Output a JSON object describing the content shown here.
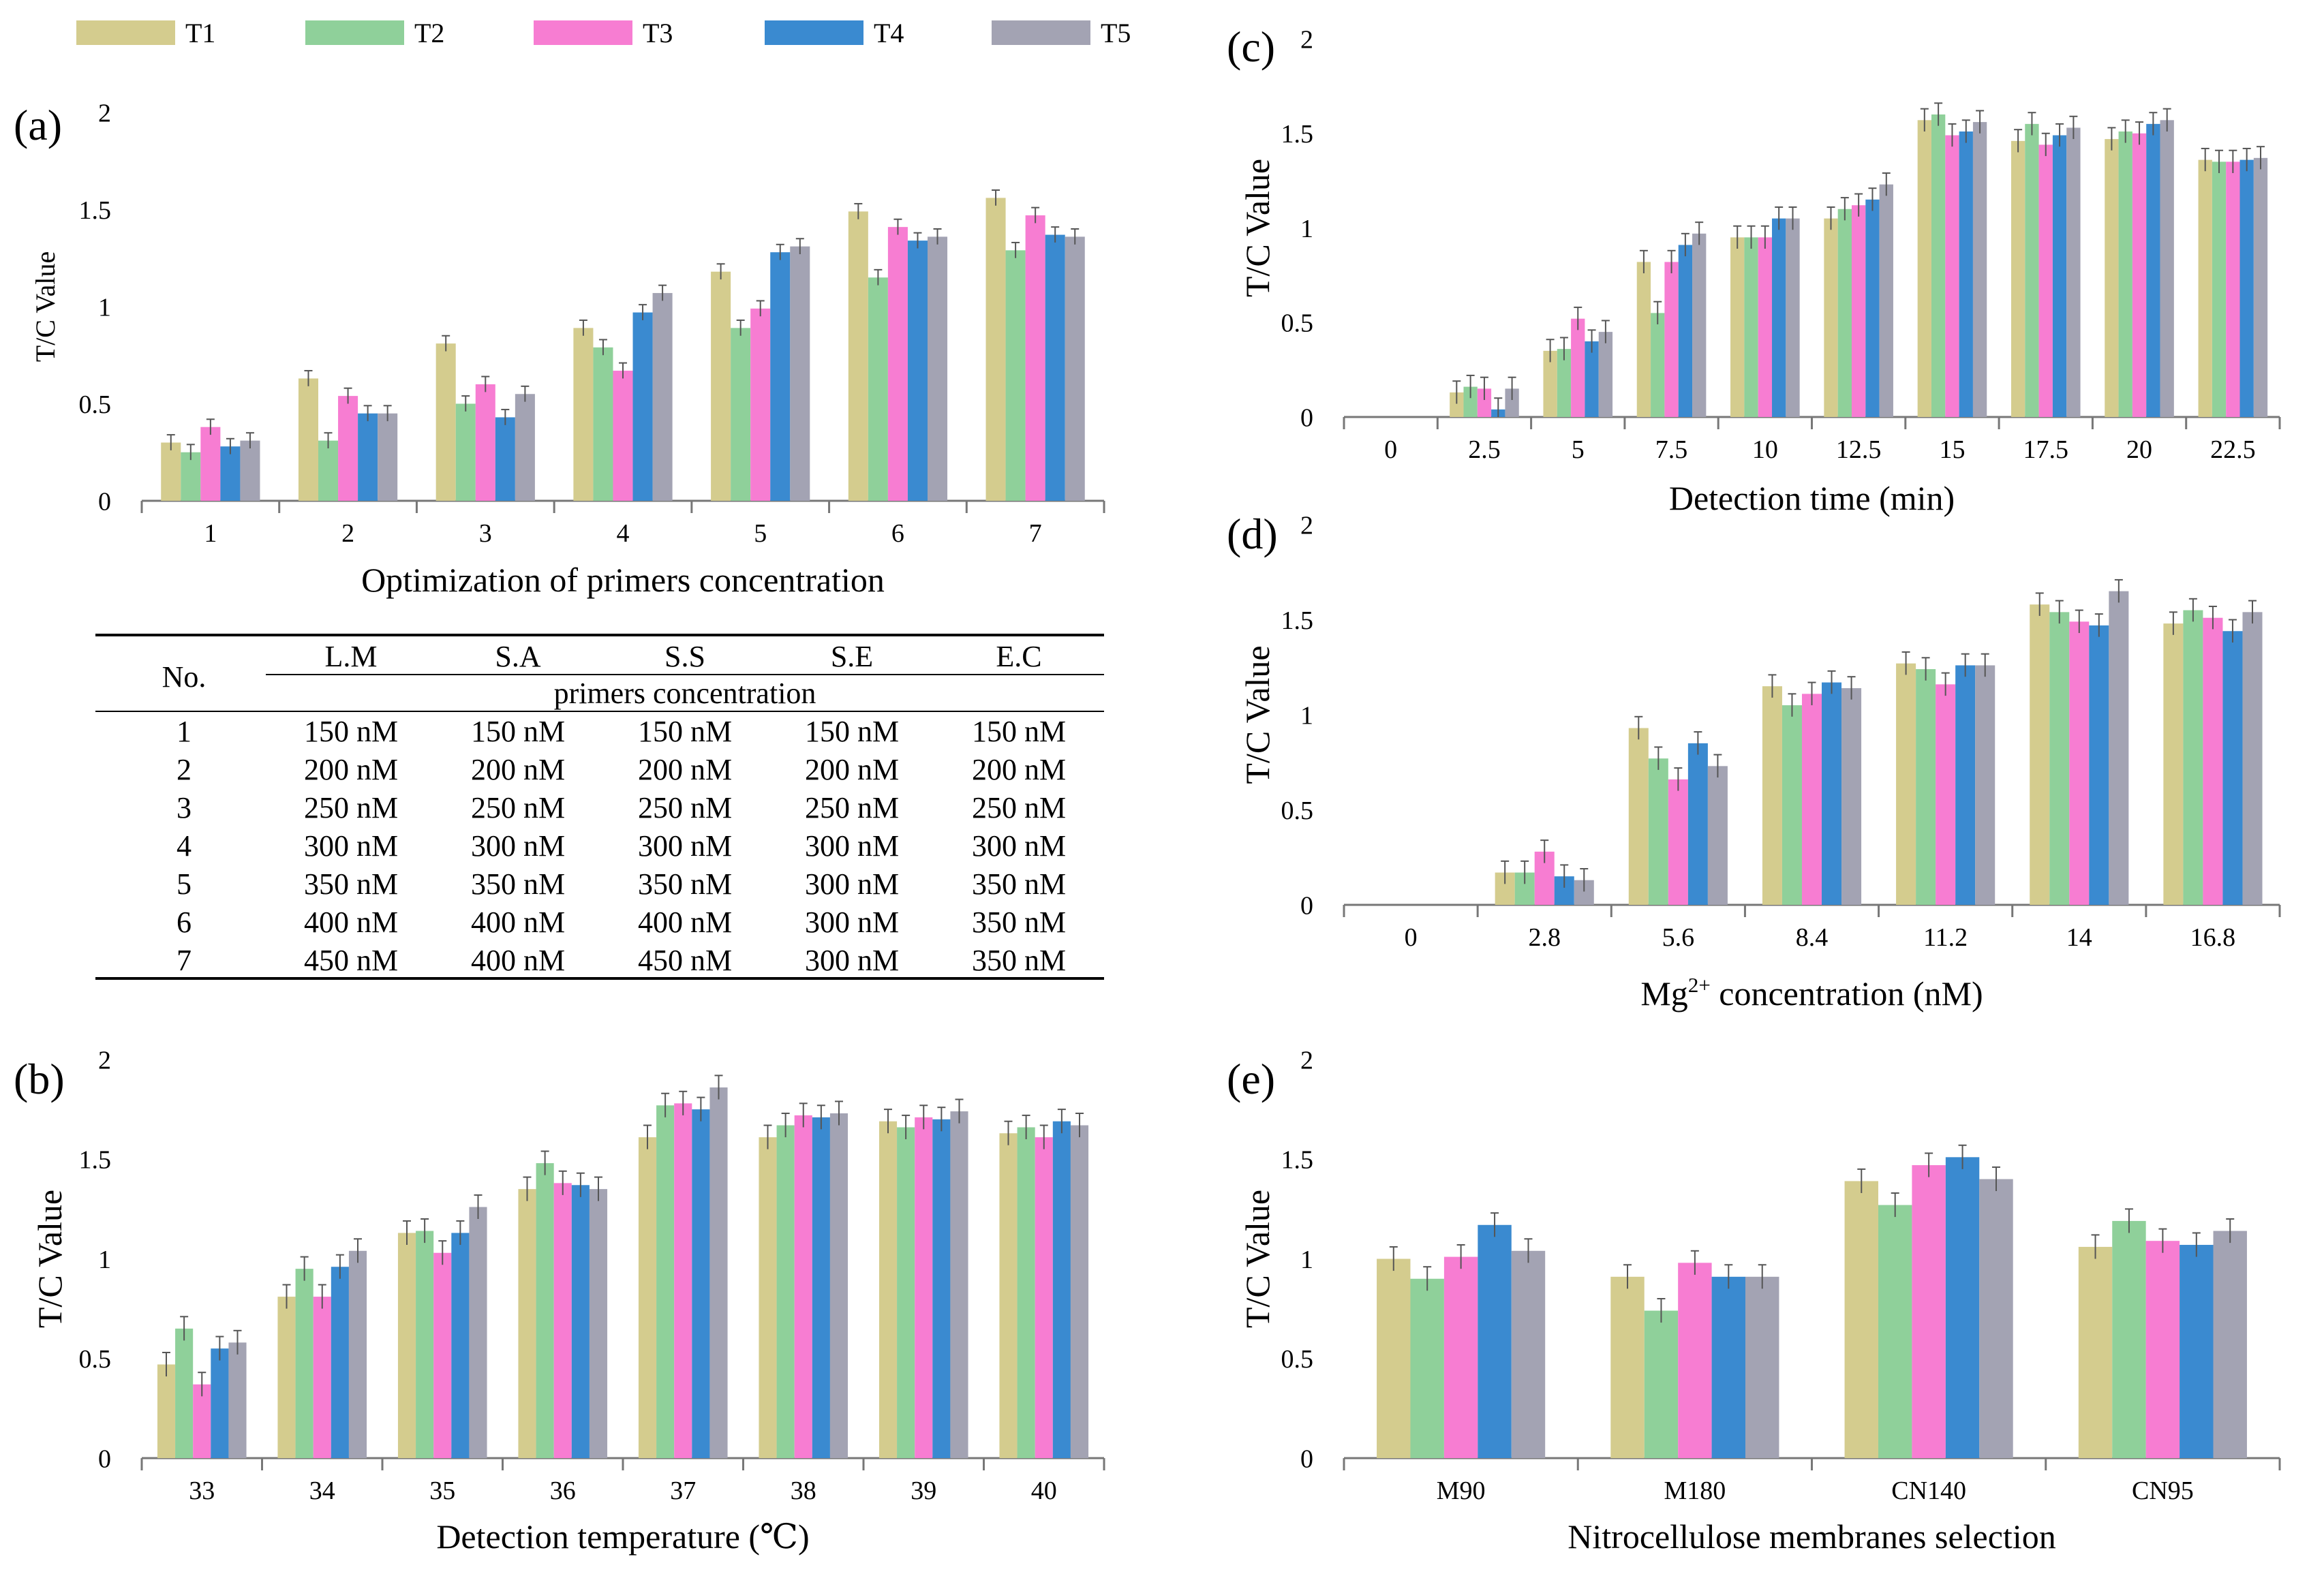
{
  "legend": {
    "series": [
      "T1",
      "T2",
      "T3",
      "T4",
      "T5"
    ],
    "colors": [
      "#d4cc8e",
      "#8fd09a",
      "#f77dd2",
      "#3a8ad0",
      "#a3a3b3"
    ]
  },
  "chart_data": [
    {
      "id": "a",
      "panel_label": "(a)",
      "type": "bar",
      "title": "",
      "xlabel": "Optimization of primers concentration",
      "ylabel": "T/C Value",
      "ylim": [
        0,
        2
      ],
      "yticks": [
        "0",
        "0.5",
        "1",
        "1.5",
        "2"
      ],
      "categories": [
        "1",
        "2",
        "3",
        "4",
        "5",
        "6",
        "7"
      ],
      "series": [
        {
          "name": "T1",
          "values": [
            0.3,
            0.63,
            0.81,
            0.89,
            1.18,
            1.49,
            1.56
          ]
        },
        {
          "name": "T2",
          "values": [
            0.25,
            0.31,
            0.5,
            0.79,
            0.89,
            1.15,
            1.29
          ]
        },
        {
          "name": "T3",
          "values": [
            0.38,
            0.54,
            0.6,
            0.67,
            0.99,
            1.41,
            1.47
          ]
        },
        {
          "name": "T4",
          "values": [
            0.28,
            0.45,
            0.43,
            0.97,
            1.28,
            1.34,
            1.37
          ]
        },
        {
          "name": "T5",
          "values": [
            0.31,
            0.45,
            0.55,
            1.07,
            1.31,
            1.36,
            1.36
          ]
        }
      ],
      "error": 0.04
    },
    {
      "id": "b",
      "panel_label": "(b)",
      "type": "bar",
      "title": "",
      "xlabel": "Detection temperature (℃)",
      "ylabel": "T/C Value",
      "ylim": [
        0,
        2
      ],
      "yticks": [
        "0",
        "0.5",
        "1",
        "1.5",
        "2"
      ],
      "categories": [
        "33",
        "34",
        "35",
        "36",
        "37",
        "38",
        "39",
        "40"
      ],
      "series": [
        {
          "name": "T1",
          "values": [
            0.47,
            0.81,
            1.13,
            1.35,
            1.61,
            1.61,
            1.69,
            1.63
          ]
        },
        {
          "name": "T2",
          "values": [
            0.65,
            0.95,
            1.14,
            1.48,
            1.77,
            1.67,
            1.66,
            1.66
          ]
        },
        {
          "name": "T3",
          "values": [
            0.37,
            0.81,
            1.03,
            1.38,
            1.78,
            1.72,
            1.71,
            1.61
          ]
        },
        {
          "name": "T4",
          "values": [
            0.55,
            0.96,
            1.13,
            1.37,
            1.75,
            1.71,
            1.7,
            1.69
          ]
        },
        {
          "name": "T5",
          "values": [
            0.58,
            1.04,
            1.26,
            1.35,
            1.86,
            1.73,
            1.74,
            1.67
          ]
        }
      ],
      "error": 0.06
    },
    {
      "id": "c",
      "panel_label": "(c)",
      "type": "bar",
      "title": "",
      "xlabel": "Detection time (min)",
      "ylabel": "T/C Value",
      "ylim": [
        0,
        2
      ],
      "yticks": [
        "0",
        "0.5",
        "1",
        "1.5",
        "2"
      ],
      "categories": [
        "0",
        "2.5",
        "5",
        "7.5",
        "10",
        "12.5",
        "15",
        "17.5",
        "20",
        "22.5"
      ],
      "series": [
        {
          "name": "T1",
          "values": [
            0,
            0.13,
            0.35,
            0.82,
            0.95,
            1.05,
            1.57,
            1.46,
            1.47,
            1.36
          ]
        },
        {
          "name": "T2",
          "values": [
            0,
            0.16,
            0.36,
            0.55,
            0.95,
            1.1,
            1.6,
            1.55,
            1.51,
            1.35
          ]
        },
        {
          "name": "T3",
          "values": [
            0,
            0.15,
            0.52,
            0.82,
            0.95,
            1.12,
            1.49,
            1.44,
            1.5,
            1.35
          ]
        },
        {
          "name": "T4",
          "values": [
            0,
            0.04,
            0.4,
            0.91,
            1.05,
            1.15,
            1.51,
            1.49,
            1.55,
            1.36
          ]
        },
        {
          "name": "T5",
          "values": [
            0,
            0.15,
            0.45,
            0.97,
            1.05,
            1.23,
            1.56,
            1.53,
            1.57,
            1.37
          ]
        }
      ],
      "error": 0.06
    },
    {
      "id": "d",
      "panel_label": "(d)",
      "type": "bar",
      "title": "",
      "xlabel_pre": "Mg",
      "xlabel_sup": "2+",
      "xlabel_post": " concentration (nM)",
      "ylabel": "T/C Value",
      "ylim": [
        0,
        2
      ],
      "yticks": [
        "0",
        "0.5",
        "1",
        "1.5",
        "2"
      ],
      "categories": [
        "0",
        "2.8",
        "5.6",
        "8.4",
        "11.2",
        "14",
        "16.8"
      ],
      "series": [
        {
          "name": "T1",
          "values": [
            0,
            0.17,
            0.93,
            1.15,
            1.27,
            1.58,
            1.48
          ]
        },
        {
          "name": "T2",
          "values": [
            0,
            0.17,
            0.77,
            1.05,
            1.24,
            1.54,
            1.55
          ]
        },
        {
          "name": "T3",
          "values": [
            0,
            0.28,
            0.66,
            1.11,
            1.16,
            1.49,
            1.51
          ]
        },
        {
          "name": "T4",
          "values": [
            0,
            0.15,
            0.85,
            1.17,
            1.26,
            1.47,
            1.44
          ]
        },
        {
          "name": "T5",
          "values": [
            0,
            0.13,
            0.73,
            1.14,
            1.26,
            1.65,
            1.54
          ]
        }
      ],
      "error": 0.06
    },
    {
      "id": "e",
      "panel_label": "(e)",
      "type": "bar",
      "title": "",
      "xlabel": "Nitrocellulose membranes selection",
      "ylabel": "T/C Value",
      "ylim": [
        0,
        2
      ],
      "yticks": [
        "0",
        "0.5",
        "1",
        "1.5",
        "2"
      ],
      "categories": [
        "M90",
        "M180",
        "CN140",
        "CN95"
      ],
      "series": [
        {
          "name": "T1",
          "values": [
            1.0,
            0.91,
            1.39,
            1.06
          ]
        },
        {
          "name": "T2",
          "values": [
            0.9,
            0.74,
            1.27,
            1.19
          ]
        },
        {
          "name": "T3",
          "values": [
            1.01,
            0.98,
            1.47,
            1.09
          ]
        },
        {
          "name": "T4",
          "values": [
            1.17,
            0.91,
            1.51,
            1.07
          ]
        },
        {
          "name": "T5",
          "values": [
            1.04,
            0.91,
            1.4,
            1.14
          ]
        }
      ],
      "error": 0.06
    }
  ],
  "table": {
    "no_header": "No.",
    "columns": [
      "L.M",
      "S.A",
      "S.S",
      "S.E",
      "E.C"
    ],
    "subheader": "primers concentration",
    "rows": [
      {
        "no": "1",
        "cells": [
          "150 nM",
          "150 nM",
          "150 nM",
          "150 nM",
          "150 nM"
        ]
      },
      {
        "no": "2",
        "cells": [
          "200 nM",
          "200 nM",
          "200 nM",
          "200 nM",
          "200 nM"
        ]
      },
      {
        "no": "3",
        "cells": [
          "250 nM",
          "250 nM",
          "250 nM",
          "250 nM",
          "250 nM"
        ]
      },
      {
        "no": "4",
        "cells": [
          "300 nM",
          "300 nM",
          "300 nM",
          "300 nM",
          "300 nM"
        ]
      },
      {
        "no": "5",
        "cells": [
          "350 nM",
          "350 nM",
          "350 nM",
          "300 nM",
          "350 nM"
        ]
      },
      {
        "no": "6",
        "cells": [
          "400 nM",
          "400 nM",
          "400 nM",
          "300 nM",
          "350 nM"
        ]
      },
      {
        "no": "7",
        "cells": [
          "450 nM",
          "400 nM",
          "450 nM",
          "300 nM",
          "350 nM"
        ]
      }
    ]
  }
}
